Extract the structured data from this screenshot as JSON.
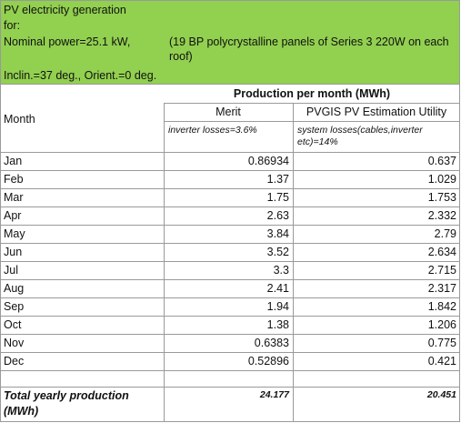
{
  "header": {
    "line1": "PV electricity generation",
    "line2": "for:",
    "nominal_power": "Nominal power=25.1 kW,",
    "panels": "(19 BP polycrystalline panels of Series 3 220W  on each roof)",
    "orientation": "Inclin.=37 deg., Orient.=0 deg."
  },
  "table": {
    "group_header": "Production per month (MWh)",
    "month_header": "Month",
    "columns": [
      "Merit",
      "PVGIS PV Estimation Utility"
    ],
    "notes": [
      "inverter losses=3.6%",
      "system losses(cables,inverter etc)=14%"
    ],
    "rows": [
      [
        "Jan",
        "0.86934",
        "0.637"
      ],
      [
        "Feb",
        "1.37",
        "1.029"
      ],
      [
        "Mar",
        "1.75",
        "1.753"
      ],
      [
        "Apr",
        "2.63",
        "2.332"
      ],
      [
        "May",
        "3.84",
        "2.79"
      ],
      [
        "Jun",
        "3.52",
        "2.634"
      ],
      [
        "Jul",
        "3.3",
        "2.715"
      ],
      [
        "Aug",
        "2.41",
        "2.317"
      ],
      [
        "Sep",
        "1.94",
        "1.842"
      ],
      [
        "Oct",
        "1.38",
        "1.206"
      ],
      [
        "Nov",
        "0.6383",
        "0.775"
      ],
      [
        "Dec",
        "0.52896",
        "0.421"
      ]
    ],
    "total": [
      "Total yearly production (MWh)",
      "24.177",
      "20.451"
    ]
  }
}
